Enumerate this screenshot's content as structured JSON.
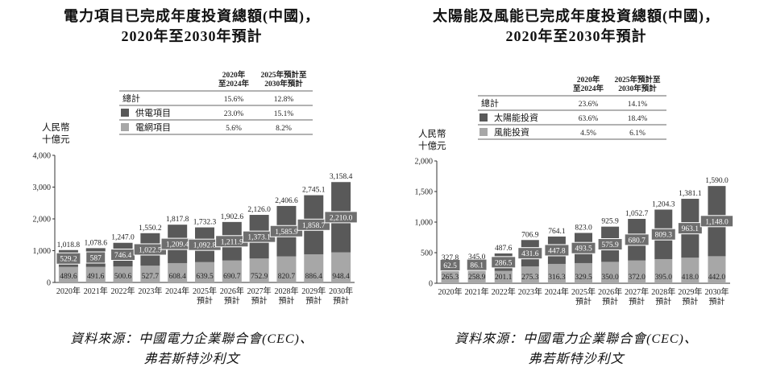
{
  "left": {
    "title_line1": "電力項目已完成年度投資總額(中國)，",
    "title_line2": "2020年至2030年預計",
    "unit_line1": "人民幣",
    "unit_line2": "十億元",
    "source_line1": "資料來源：中國電力企業聯合會(CEC)、",
    "source_line2": "弗若斯特沙利文",
    "table": {
      "col1_line1": "2020年",
      "col1_line2": "至2024年",
      "col2_line1": "2025年預計至",
      "col2_line2": "2030年預計",
      "rows": [
        {
          "label": "總計",
          "swatch": "none",
          "v1": "15.6%",
          "v2": "12.8%"
        },
        {
          "label": "供電項目",
          "swatch": "#595959",
          "v1": "23.0%",
          "v2": "15.1%"
        },
        {
          "label": "電網項目",
          "swatch": "#a7a7a7",
          "v1": "5.6%",
          "v2": "8.2%"
        }
      ]
    }
  },
  "right": {
    "title_line1": "太陽能及風能已完成年度投資總額(中國)，",
    "title_line2": "2020年至2030年預計",
    "unit_line1": "人民幣",
    "unit_line2": "十億元",
    "source_line1": "資料來源：中國電力企業聯合會(CEC)、",
    "source_line2": "弗若斯特沙利文",
    "table": {
      "col1_line1": "2020年",
      "col1_line2": "至2024年",
      "col2_line1": "2025年預計至",
      "col2_line2": "2030年預計",
      "rows": [
        {
          "label": "總計",
          "swatch": "none",
          "v1": "23.6%",
          "v2": "14.1%"
        },
        {
          "label": "太陽能投資",
          "swatch": "#595959",
          "v1": "63.6%",
          "v2": "18.4%"
        },
        {
          "label": "風能投資",
          "swatch": "#a7a7a7",
          "v1": "4.5%",
          "v2": "6.1%"
        }
      ]
    }
  },
  "chart_data": [
    {
      "type": "bar",
      "stacked": true,
      "categories": [
        [
          "2020年"
        ],
        [
          "2021年"
        ],
        [
          "2022年"
        ],
        [
          "2023年"
        ],
        [
          "2024年"
        ],
        [
          "2025年",
          "預計"
        ],
        [
          "2026年",
          "預計"
        ],
        [
          "2027年",
          "預計"
        ],
        [
          "2028年",
          "預計"
        ],
        [
          "2029年",
          "預計"
        ],
        [
          "2030年",
          "預計"
        ]
      ],
      "series": [
        {
          "name": "電網項目",
          "color": "#a7a7a7",
          "values": [
            489.6,
            491.6,
            500.6,
            527.7,
            608.4,
            639.5,
            690.7,
            752.9,
            820.7,
            886.4,
            948.4
          ]
        },
        {
          "name": "供電項目",
          "color": "#595959",
          "values": [
            529.2,
            587,
            746.4,
            1022.5,
            1209.4,
            1092.8,
            1211.9,
            1373.1,
            1585.9,
            1858.7,
            2210.0
          ]
        }
      ],
      "series_labels": [
        [
          "489.6",
          "491.6",
          "500.6",
          "527.7",
          "608.4",
          "639.5",
          "690.7",
          "752.9",
          "820.7",
          "886.4",
          "948.4"
        ],
        [
          "529.2",
          "587",
          "746.4",
          "1,022.5",
          "1,209.4",
          "1,092.8",
          "1,211.9",
          "1,373.1",
          "1,585.9",
          "1,858.7",
          "2,210.0"
        ]
      ],
      "totals": [
        "1,018.8",
        "1,078.6",
        "1,247.0",
        "1,550.2",
        "1,817.8",
        "1,732.3",
        "1,902.6",
        "2,126.0",
        "2,406.6",
        "2,745.1",
        "3,158.4"
      ],
      "ylim": [
        0,
        4000
      ],
      "yticks": [
        0,
        1000,
        2000,
        3000,
        4000
      ],
      "ytick_labels": [
        "0",
        "1,000",
        "2,000",
        "3,000",
        "4,000"
      ],
      "grid": false
    },
    {
      "type": "bar",
      "stacked": true,
      "categories": [
        [
          "2020年"
        ],
        [
          "2021年"
        ],
        [
          "2022年"
        ],
        [
          "2023年"
        ],
        [
          "2024年"
        ],
        [
          "2025年",
          "預計"
        ],
        [
          "2026年",
          "預計"
        ],
        [
          "2027年",
          "預計"
        ],
        [
          "2028年",
          "預計"
        ],
        [
          "2029年",
          "預計"
        ],
        [
          "2030年",
          "預計"
        ]
      ],
      "series": [
        {
          "name": "風能投資",
          "color": "#a7a7a7",
          "values": [
            265.3,
            258.9,
            201.1,
            275.3,
            316.3,
            329.5,
            350.0,
            372.0,
            395.0,
            418.0,
            442.0
          ]
        },
        {
          "name": "太陽能投資",
          "color": "#595959",
          "values": [
            62.5,
            86.1,
            286.5,
            431.6,
            447.8,
            493.5,
            575.9,
            680.7,
            809.3,
            963.1,
            1148.0
          ]
        }
      ],
      "series_labels": [
        [
          "265.3",
          "258.9",
          "201.1",
          "275.3",
          "316.3",
          "329.5",
          "350.0",
          "372.0",
          "395.0",
          "418.0",
          "442.0"
        ],
        [
          "62.5",
          "86.1",
          "286.5",
          "431.6",
          "447.8",
          "493.5",
          "575.9",
          "680.7",
          "809.3",
          "963.1",
          "1,148.0"
        ]
      ],
      "totals": [
        "327.8",
        "345.0",
        "487.6",
        "706.9",
        "764.1",
        "823.0",
        "925.9",
        "1,052.7",
        "1,204.3",
        "1,381.1",
        "1,590.0"
      ],
      "ylim": [
        0,
        2000
      ],
      "yticks": [
        0,
        500,
        1000,
        1500,
        2000
      ],
      "ytick_labels": [
        "0",
        "500",
        "1,000",
        "1,500",
        "2,000"
      ],
      "grid": false
    }
  ]
}
